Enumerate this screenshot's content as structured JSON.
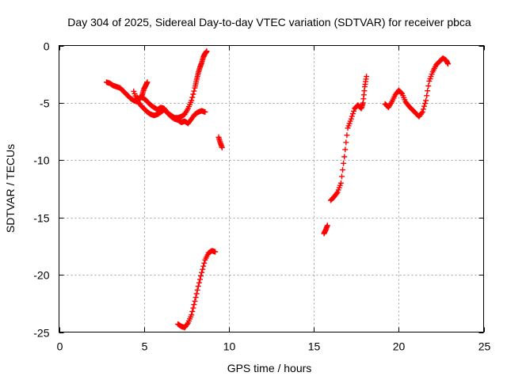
{
  "chart_data": {
    "type": "scatter",
    "title": "Day 304 of 2025, Sidereal Day-to-day VTEC variation (SDTVAR) for receiver pbca",
    "xlabel": "GPS time / hours",
    "ylabel": "SDTVAR / TECUs",
    "xlim": [
      0,
      25
    ],
    "ylim": [
      -25,
      0
    ],
    "xticks": [
      0,
      5,
      10,
      15,
      20,
      25
    ],
    "xtick_labels": [
      "0",
      "5",
      "10",
      "15",
      "20",
      "25"
    ],
    "yticks": [
      0,
      -5,
      -10,
      -15,
      -20,
      -25
    ],
    "ytick_labels": [
      "0",
      "-5",
      "-10",
      "-15",
      "-20",
      "-25"
    ],
    "grid": true,
    "marker": "+",
    "color": "#ff0000",
    "series": [
      {
        "name": "SDTVAR",
        "segments": [
          [
            [
              2.8,
              -3.2
            ],
            [
              3.0,
              -3.3
            ],
            [
              3.2,
              -3.5
            ],
            [
              3.4,
              -3.6
            ],
            [
              3.6,
              -3.7
            ],
            [
              3.8,
              -4.0
            ],
            [
              4.0,
              -4.3
            ],
            [
              4.2,
              -4.6
            ],
            [
              4.4,
              -4.8
            ],
            [
              4.6,
              -4.9
            ],
            [
              4.8,
              -4.5
            ],
            [
              5.0,
              -4.6
            ],
            [
              5.2,
              -4.9
            ],
            [
              5.4,
              -5.2
            ],
            [
              5.6,
              -5.4
            ],
            [
              5.8,
              -5.6
            ],
            [
              6.0,
              -5.4
            ],
            [
              6.2,
              -5.5
            ],
            [
              6.4,
              -5.9
            ],
            [
              6.6,
              -6.2
            ],
            [
              6.8,
              -6.4
            ],
            [
              7.0,
              -6.5
            ],
            [
              7.2,
              -6.7
            ],
            [
              7.4,
              -6.6
            ],
            [
              7.6,
              -6.8
            ],
            [
              7.8,
              -6.4
            ],
            [
              8.0,
              -6.0
            ],
            [
              8.2,
              -5.8
            ],
            [
              8.4,
              -5.7
            ],
            [
              8.6,
              -5.8
            ]
          ],
          [
            [
              4.4,
              -4.0
            ],
            [
              4.6,
              -4.8
            ],
            [
              4.8,
              -5.2
            ],
            [
              5.0,
              -5.5
            ],
            [
              5.2,
              -5.8
            ],
            [
              5.4,
              -6.0
            ],
            [
              5.6,
              -6.1
            ],
            [
              5.8,
              -6.0
            ],
            [
              6.0,
              -5.8
            ],
            [
              6.2,
              -5.6
            ],
            [
              6.4,
              -5.9
            ],
            [
              6.6,
              -6.1
            ],
            [
              6.8,
              -6.3
            ],
            [
              7.0,
              -6.3
            ],
            [
              7.2,
              -6.2
            ],
            [
              7.4,
              -6.0
            ],
            [
              7.6,
              -5.5
            ],
            [
              7.8,
              -4.8
            ],
            [
              8.0,
              -3.7
            ],
            [
              8.1,
              -3.0
            ],
            [
              8.2,
              -2.4
            ],
            [
              8.3,
              -1.9
            ],
            [
              8.4,
              -1.5
            ],
            [
              8.5,
              -1.0
            ],
            [
              8.6,
              -0.7
            ],
            [
              8.7,
              -0.5
            ]
          ],
          [
            [
              4.6,
              -4.5
            ],
            [
              4.7,
              -4.7
            ],
            [
              4.9,
              -4.3
            ],
            [
              5.0,
              -3.8
            ],
            [
              5.1,
              -3.5
            ],
            [
              5.2,
              -3.2
            ]
          ],
          [
            [
              9.4,
              -8.0
            ],
            [
              9.5,
              -8.5
            ],
            [
              9.6,
              -8.9
            ]
          ],
          [
            [
              7.0,
              -24.3
            ],
            [
              7.2,
              -24.5
            ],
            [
              7.4,
              -24.6
            ],
            [
              7.6,
              -24.2
            ],
            [
              7.8,
              -23.5
            ],
            [
              8.0,
              -22.3
            ],
            [
              8.2,
              -21.0
            ],
            [
              8.4,
              -19.8
            ],
            [
              8.6,
              -18.7
            ],
            [
              8.8,
              -18.1
            ],
            [
              9.0,
              -17.9
            ],
            [
              9.2,
              -18.0
            ]
          ],
          [
            [
              15.6,
              -16.4
            ],
            [
              15.7,
              -16.1
            ],
            [
              15.8,
              -15.7
            ]
          ],
          [
            [
              16.0,
              -13.5
            ],
            [
              16.2,
              -13.2
            ],
            [
              16.4,
              -12.8
            ],
            [
              16.6,
              -12.0
            ],
            [
              16.8,
              -9.7
            ],
            [
              17.0,
              -7.2
            ],
            [
              17.2,
              -6.4
            ],
            [
              17.4,
              -5.5
            ],
            [
              17.6,
              -5.2
            ],
            [
              17.8,
              -5.5
            ],
            [
              17.9,
              -5.0
            ],
            [
              18.0,
              -3.6
            ],
            [
              18.1,
              -2.7
            ]
          ],
          [
            [
              19.2,
              -5.1
            ],
            [
              19.4,
              -5.4
            ],
            [
              19.6,
              -4.9
            ],
            [
              19.8,
              -4.3
            ],
            [
              20.0,
              -3.9
            ],
            [
              20.2,
              -4.2
            ],
            [
              20.4,
              -4.9
            ],
            [
              20.6,
              -5.3
            ],
            [
              20.8,
              -5.6
            ],
            [
              21.0,
              -5.9
            ],
            [
              21.2,
              -6.2
            ],
            [
              21.4,
              -5.8
            ],
            [
              21.6,
              -4.8
            ],
            [
              21.8,
              -3.1
            ],
            [
              22.0,
              -2.3
            ],
            [
              22.2,
              -1.7
            ],
            [
              22.4,
              -1.4
            ],
            [
              22.6,
              -1.1
            ],
            [
              22.8,
              -1.3
            ],
            [
              22.9,
              -1.6
            ]
          ]
        ]
      }
    ]
  }
}
